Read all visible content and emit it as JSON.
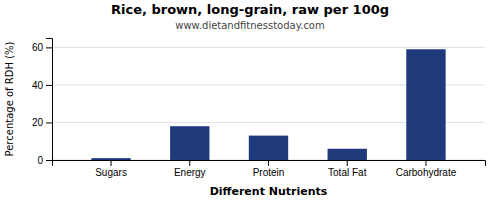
{
  "chart_data": {
    "type": "bar",
    "title": "Rice, brown, long-grain, raw per 100g",
    "subtitle": "www.dietandfitnesstoday.com",
    "categories": [
      "Sugars",
      "Energy",
      "Protein",
      "Total Fat",
      "Carbohydrate"
    ],
    "values": [
      1,
      18,
      13,
      6,
      59
    ],
    "color": "#1f3a7a",
    "xlabel": "Different Nutrients",
    "ylabel": "Percentage of RDH (%)",
    "ylim": [
      0,
      65
    ],
    "yticks": [
      0,
      20,
      40,
      60
    ],
    "grid": true
  }
}
